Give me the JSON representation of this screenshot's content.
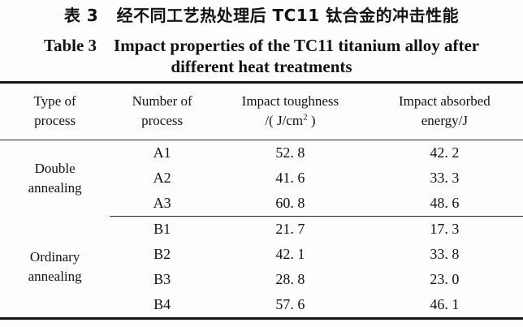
{
  "title": {
    "zh": "表 3   经不同工艺热处理后 TC11 钛合金的冲击性能",
    "en_line1": "Table 3    Impact properties of the TC11 titanium alloy after",
    "en_line2": "different heat treatments"
  },
  "table": {
    "headers": {
      "col1": {
        "line1": "Type of",
        "line2": "process"
      },
      "col2": {
        "line1": "Number of",
        "line2": "process"
      },
      "col3": {
        "line1": "Impact toughness",
        "unit_pre": "/( J/cm",
        "unit_sup": "2",
        "unit_post": " )"
      },
      "col4": {
        "line1": "Impact absorbed",
        "line2": "energy/J"
      }
    },
    "groups": {
      "double": {
        "line1": "Double",
        "line2": "annealing"
      },
      "ordinary": {
        "line1": "Ordinary",
        "line2": "annealing"
      }
    },
    "rows": [
      {
        "number": "A1",
        "toughness": "52. 8",
        "energy": "42. 2"
      },
      {
        "number": "A2",
        "toughness": "41. 6",
        "energy": "33. 3"
      },
      {
        "number": "A3",
        "toughness": "60. 8",
        "energy": "48. 6"
      },
      {
        "number": "B1",
        "toughness": "21. 7",
        "energy": "17. 3"
      },
      {
        "number": "B2",
        "toughness": "42. 1",
        "energy": "33. 8"
      },
      {
        "number": "B3",
        "toughness": "28. 8",
        "energy": "23. 0"
      },
      {
        "number": "B4",
        "toughness": "57. 6",
        "energy": "46. 1"
      }
    ]
  },
  "colors": {
    "background": "#fdfdfd",
    "text": "#121212",
    "rule": "#171717"
  }
}
